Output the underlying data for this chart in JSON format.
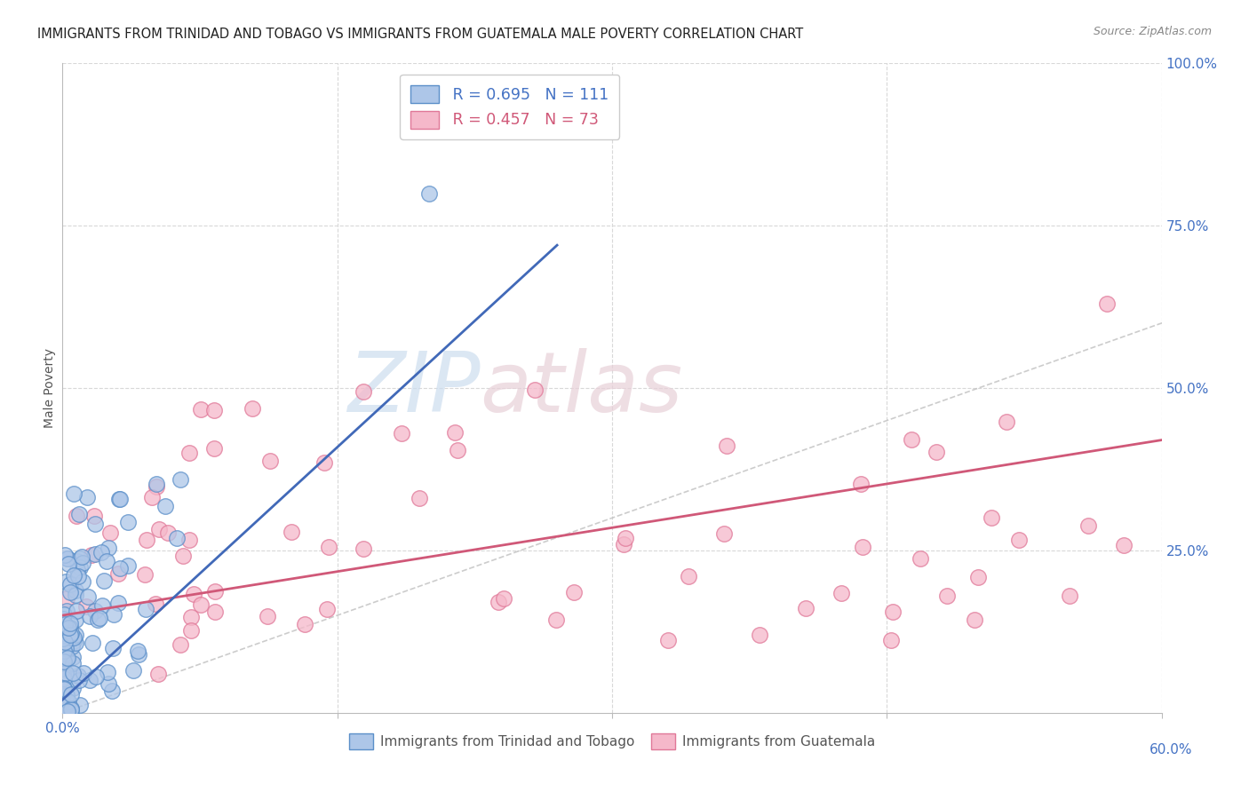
{
  "title": "IMMIGRANTS FROM TRINIDAD AND TOBAGO VS IMMIGRANTS FROM GUATEMALA MALE POVERTY CORRELATION CHART",
  "source": "Source: ZipAtlas.com",
  "ylabel": "Male Poverty",
  "ylabel_right_ticks": [
    "100.0%",
    "75.0%",
    "50.0%",
    "25.0%"
  ],
  "ylabel_right_vals": [
    1.0,
    0.75,
    0.5,
    0.25
  ],
  "x_range": [
    0.0,
    0.6
  ],
  "y_range": [
    0.0,
    1.0
  ],
  "series1_name": "Immigrants from Trinidad and Tobago",
  "series1_face_color": "#adc6e8",
  "series1_edge_color": "#5b8fc9",
  "series1_line_color": "#4169b8",
  "series1_R": 0.695,
  "series1_N": 111,
  "series2_name": "Immigrants from Guatemala",
  "series2_face_color": "#f5b8ca",
  "series2_edge_color": "#e07898",
  "series2_line_color": "#d05878",
  "series2_R": 0.457,
  "series2_N": 73,
  "diagonal_line_color": "#c0c0c0",
  "background_color": "#ffffff",
  "watermark_zip": "ZIP",
  "watermark_atlas": "atlas",
  "grid_color": "#d8d8d8",
  "legend_box_color": "#ffffff",
  "legend_edge_color": "#cccccc",
  "text_blue": "#4472c4",
  "text_pink": "#d05878",
  "tick_color": "#4472c4",
  "axis_label_color": "#555555"
}
